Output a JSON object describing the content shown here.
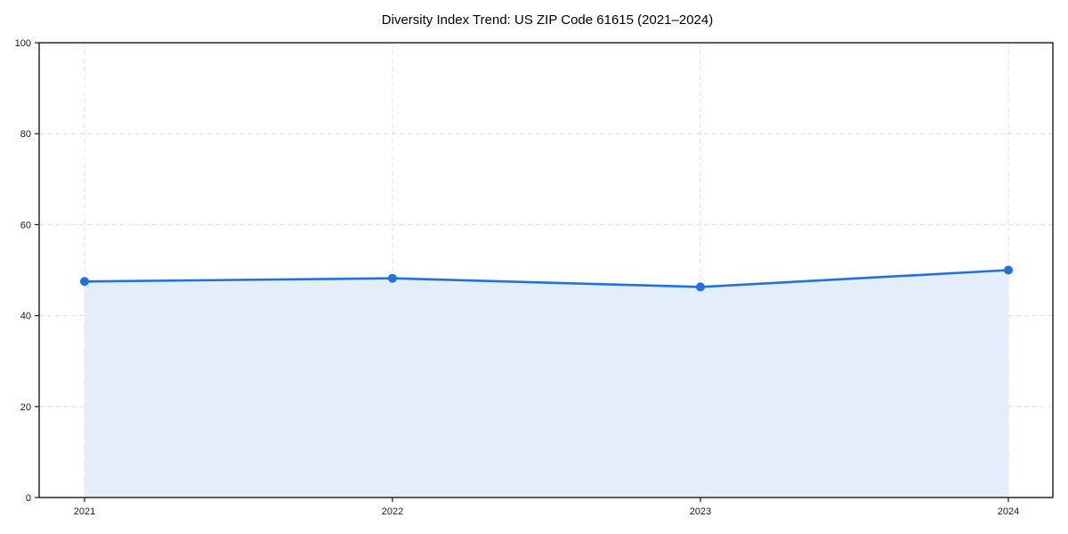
{
  "chart_data": {
    "type": "area",
    "title": "Diversity Index Trend: US ZIP Code 61615 (2021–2024)",
    "x": [
      "2021",
      "2022",
      "2023",
      "2024"
    ],
    "series": [
      {
        "name": "Diversity Index",
        "values": [
          47.5,
          48.2,
          46.3,
          50.0
        ]
      }
    ],
    "xlabel": "",
    "ylabel": "",
    "ylim": [
      0,
      100
    ],
    "yticks": [
      0,
      20,
      40,
      60,
      80,
      100
    ],
    "grid": true,
    "grid_style": "dashed",
    "legend": "none",
    "colors": {
      "line": "#2170e2",
      "marker": "#2170e2",
      "fill": "#e4eefb",
      "grid": "#dedede",
      "axis": "#1a1a1a",
      "text": "#1a1a1a",
      "background": "#ffffff"
    }
  }
}
